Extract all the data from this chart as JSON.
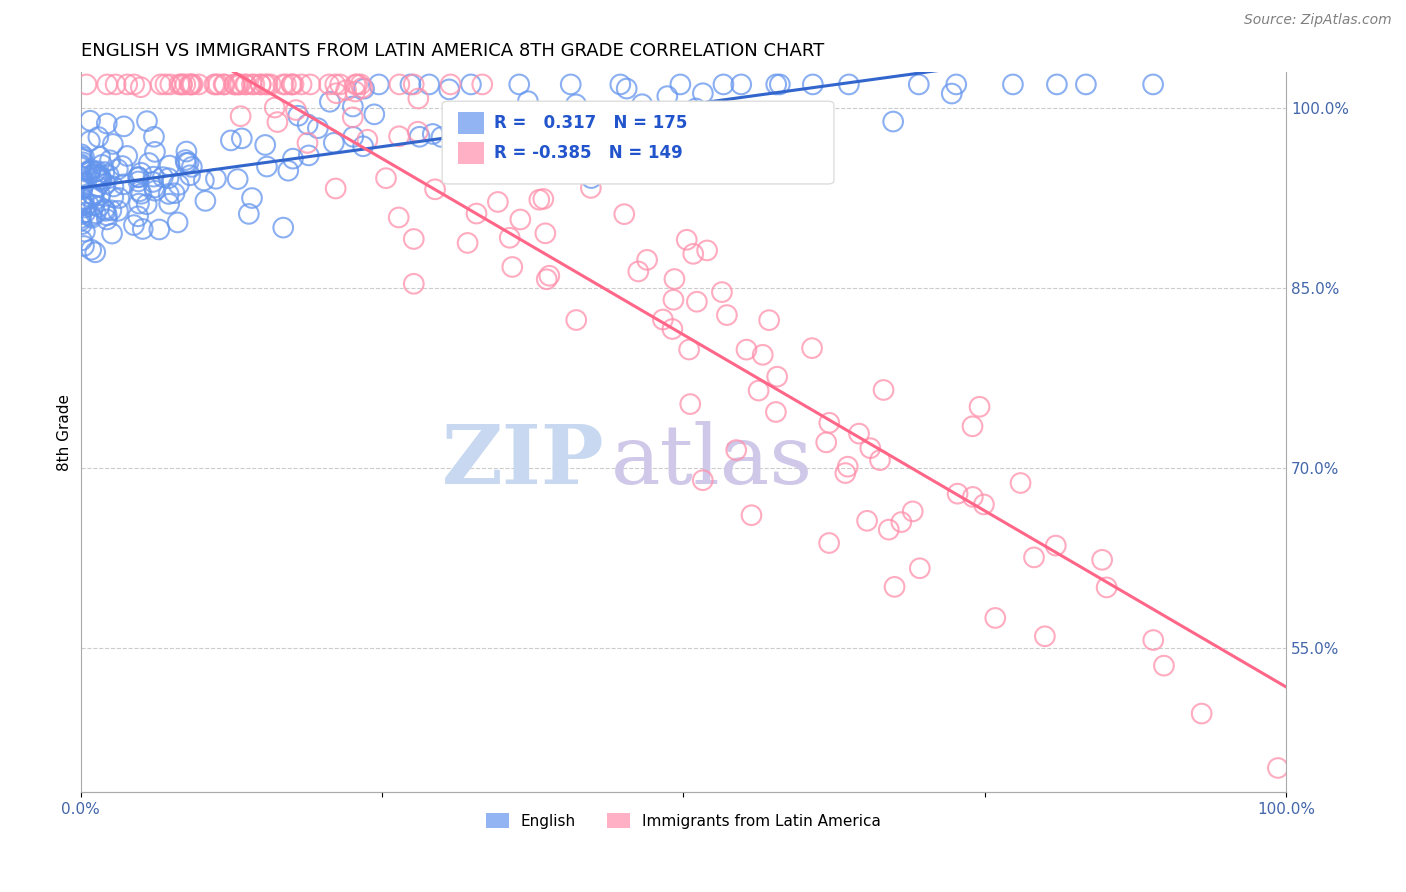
{
  "title": "ENGLISH VS IMMIGRANTS FROM LATIN AMERICA 8TH GRADE CORRELATION CHART",
  "source": "Source: ZipAtlas.com",
  "ylabel": "8th Grade",
  "xmin": 0.0,
  "xmax": 1.0,
  "ymin": 0.43,
  "ymax": 1.03,
  "right_yticks": [
    0.55,
    0.7,
    0.85,
    1.0
  ],
  "right_yticklabels": [
    "55.0%",
    "70.0%",
    "85.0%",
    "100.0%"
  ],
  "english_color": "#6495ED",
  "immigrant_color": "#FF8FAB",
  "english_R": 0.317,
  "english_N": 175,
  "immigrant_R": -0.385,
  "immigrant_N": 149,
  "title_fontsize": 13,
  "source_fontsize": 10,
  "watermark_zip": "ZIP",
  "watermark_atlas": "atlas",
  "watermark_color_zip": "#c8d8f0",
  "watermark_color_atlas": "#d0c8e8",
  "legend_english": "English",
  "legend_immigrant": "Immigrants from Latin America"
}
